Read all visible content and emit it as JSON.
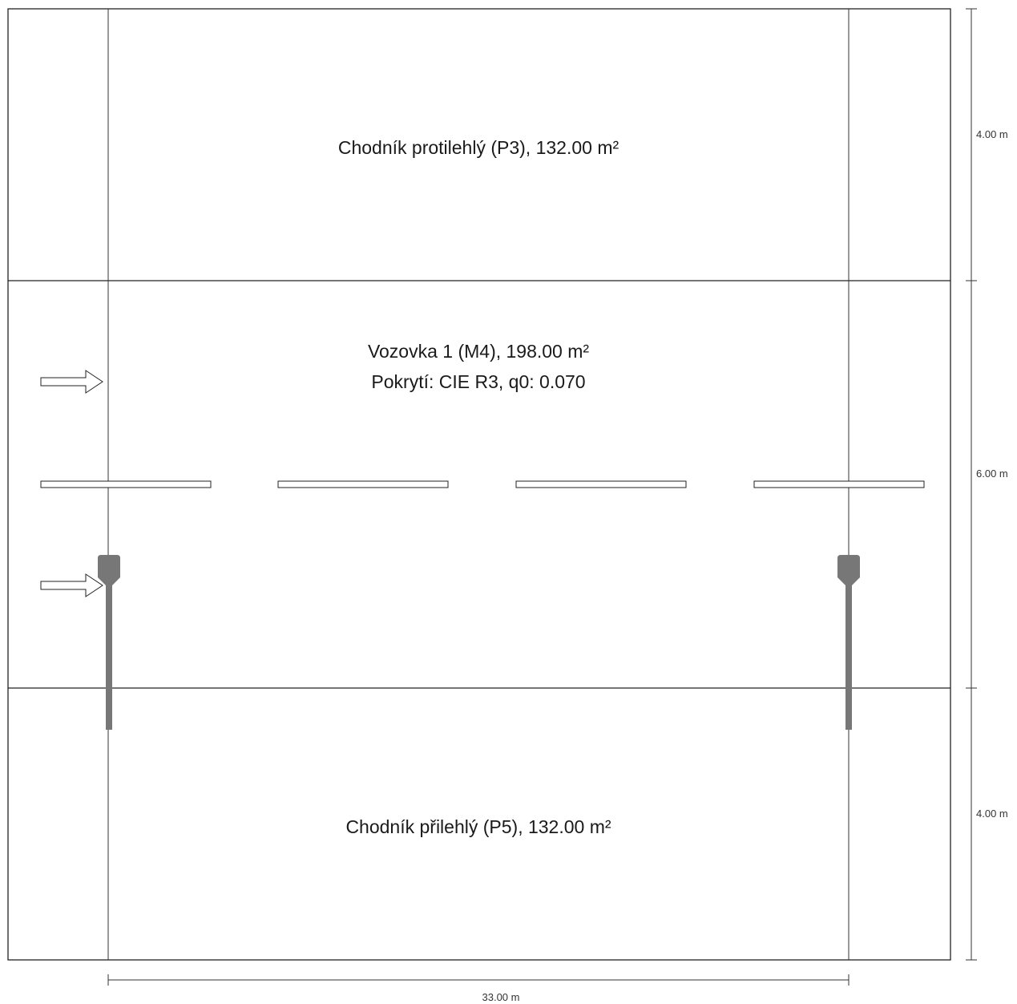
{
  "zones": {
    "p3": {
      "label": "Chodník protilehlý (P3), 132.00 m²"
    },
    "m4": {
      "label": "Vozovka 1 (M4), 198.00 m²",
      "surface": "Pokrytí: CIE R3, q0: 0.070"
    },
    "p5": {
      "label": "Chodník přilehlý (P5), 132.00 m²"
    }
  },
  "dimensions": {
    "p3_height": "4.00 m",
    "m4_height": "6.00 m",
    "p5_height": "4.00 m",
    "length": "33.00 m"
  },
  "colors": {
    "lines": "#222222",
    "luminaire": "#777777",
    "background": "#ffffff"
  }
}
